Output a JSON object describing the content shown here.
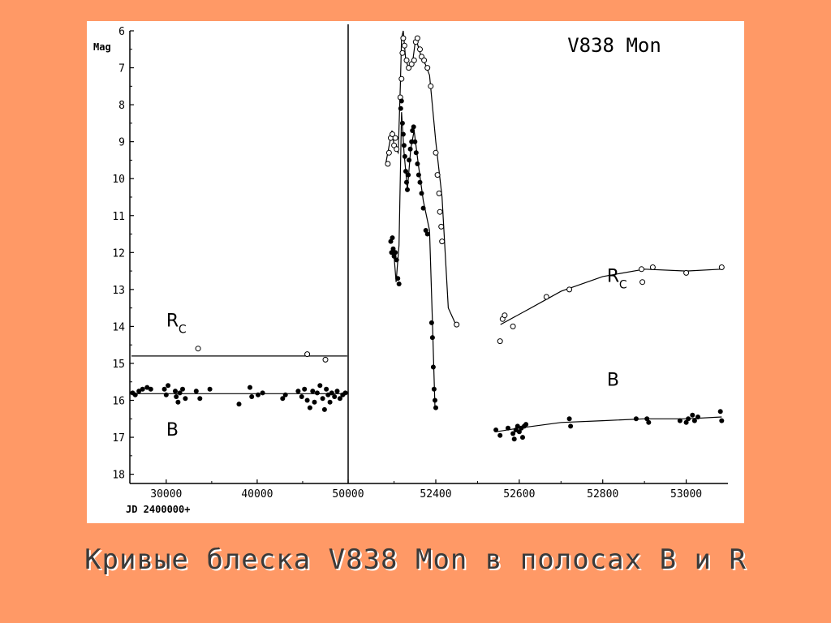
{
  "caption": "Кривые блеска V838 Mon в полосах B и R",
  "chart_data": [
    {
      "type": "scatter",
      "panel": "left",
      "title": "",
      "ylabel": "Mag",
      "xlabel": "JD 2400000+",
      "ylim": [
        6,
        18.25
      ],
      "xlim": [
        26000,
        50000
      ],
      "y_inverted": true,
      "yticks": [
        6,
        7,
        8,
        9,
        10,
        11,
        12,
        13,
        14,
        15,
        16,
        17,
        18
      ],
      "xticks": [
        30000,
        40000,
        50000
      ],
      "grid": false,
      "annotations": [
        {
          "text": "R",
          "sub": "C",
          "x": 30000,
          "y": 14.0
        },
        {
          "text": "B",
          "x": 30000,
          "y": 16.95
        }
      ],
      "series": [
        {
          "band": "Rc",
          "marker": "open-circle",
          "trend_y": 14.8,
          "points": [
            [
              33500,
              14.6
            ],
            [
              45500,
              14.75
            ],
            [
              47500,
              14.9
            ]
          ]
        },
        {
          "band": "B",
          "marker": "filled-circle",
          "trend_y": 15.82,
          "points": [
            [
              26300,
              15.8
            ],
            [
              26600,
              15.85
            ],
            [
              27000,
              15.75
            ],
            [
              27400,
              15.7
            ],
            [
              27900,
              15.65
            ],
            [
              28300,
              15.7
            ],
            [
              29800,
              15.7
            ],
            [
              30000,
              15.85
            ],
            [
              30200,
              15.6
            ],
            [
              31000,
              15.75
            ],
            [
              31100,
              15.9
            ],
            [
              31300,
              16.05
            ],
            [
              31500,
              15.8
            ],
            [
              31800,
              15.7
            ],
            [
              32100,
              15.95
            ],
            [
              33300,
              15.75
            ],
            [
              33700,
              15.95
            ],
            [
              34800,
              15.7
            ],
            [
              38000,
              16.1
            ],
            [
              39200,
              15.65
            ],
            [
              39400,
              15.9
            ],
            [
              40100,
              15.85
            ],
            [
              40600,
              15.8
            ],
            [
              42800,
              15.95
            ],
            [
              43100,
              15.85
            ],
            [
              44500,
              15.75
            ],
            [
              44900,
              15.9
            ],
            [
              45200,
              15.7
            ],
            [
              45500,
              16.0
            ],
            [
              45800,
              16.2
            ],
            [
              46100,
              15.75
            ],
            [
              46300,
              16.05
            ],
            [
              46600,
              15.8
            ],
            [
              46900,
              15.6
            ],
            [
              47200,
              15.95
            ],
            [
              47400,
              16.25
            ],
            [
              47600,
              15.7
            ],
            [
              47800,
              15.85
            ],
            [
              48000,
              16.05
            ],
            [
              48200,
              15.8
            ],
            [
              48500,
              15.9
            ],
            [
              48800,
              15.75
            ],
            [
              49100,
              15.95
            ],
            [
              49400,
              15.85
            ],
            [
              49700,
              15.8
            ]
          ]
        }
      ]
    },
    {
      "type": "line",
      "panel": "right",
      "title": "V838 Mon",
      "ylim": [
        6,
        18.25
      ],
      "xlim": [
        52190,
        53100
      ],
      "y_inverted": true,
      "xticks": [
        52400,
        52600,
        52800,
        53000
      ],
      "grid": false,
      "annotations": [
        {
          "text": "R",
          "sub": "C",
          "x": 52810,
          "y": 12.8
        },
        {
          "text": "B",
          "x": 52810,
          "y": 15.6
        }
      ],
      "series": [
        {
          "band": "Rc",
          "marker": "open-circle",
          "curve": [
            [
              52280,
              9.6
            ],
            [
              52295,
              8.7
            ],
            [
              52300,
              9.1
            ],
            [
              52310,
              9.3
            ],
            [
              52315,
              7.5
            ],
            [
              52318,
              6.2
            ],
            [
              52322,
              6.0
            ],
            [
              52328,
              6.8
            ],
            [
              52335,
              7.0
            ],
            [
              52345,
              6.8
            ],
            [
              52352,
              6.2
            ],
            [
              52360,
              6.5
            ],
            [
              52368,
              6.8
            ],
            [
              52375,
              6.9
            ],
            [
              52385,
              7.2
            ],
            [
              52400,
              9.0
            ],
            [
              52415,
              10.5
            ],
            [
              52430,
              13.5
            ],
            [
              52450,
              14.0
            ]
          ],
          "points": [
            [
              52285,
              9.6
            ],
            [
              52288,
              9.3
            ],
            [
              52292,
              8.9
            ],
            [
              52296,
              8.8
            ],
            [
              52300,
              9.1
            ],
            [
              52303,
              8.9
            ],
            [
              52306,
              9.2
            ],
            [
              52315,
              7.8
            ],
            [
              52318,
              7.3
            ],
            [
              52320,
              6.6
            ],
            [
              52322,
              6.2
            ],
            [
              52325,
              6.4
            ],
            [
              52330,
              6.8
            ],
            [
              52335,
              7.0
            ],
            [
              52342,
              6.9
            ],
            [
              52348,
              6.8
            ],
            [
              52352,
              6.3
            ],
            [
              52356,
              6.2
            ],
            [
              52362,
              6.5
            ],
            [
              52366,
              6.7
            ],
            [
              52372,
              6.8
            ],
            [
              52380,
              7.0
            ],
            [
              52388,
              7.5
            ],
            [
              52400,
              9.3
            ],
            [
              52404,
              9.9
            ],
            [
              52408,
              10.4
            ],
            [
              52410,
              10.9
            ],
            [
              52413,
              11.3
            ],
            [
              52415,
              11.7
            ],
            [
              52450,
              13.95
            ],
            [
              52554,
              14.4
            ],
            [
              52560,
              13.8
            ],
            [
              52565,
              13.7
            ],
            [
              52585,
              14.0
            ],
            [
              52665,
              13.2
            ],
            [
              52720,
              13.0
            ],
            [
              52893,
              12.45
            ],
            [
              52895,
              12.8
            ],
            [
              52920,
              12.4
            ],
            [
              53000,
              12.55
            ],
            [
              53085,
              12.4
            ]
          ],
          "trend": [
            [
              52555,
              13.95
            ],
            [
              52620,
              13.55
            ],
            [
              52700,
              13.05
            ],
            [
              52800,
              12.65
            ],
            [
              52900,
              12.45
            ],
            [
              53000,
              12.5
            ],
            [
              53085,
              12.45
            ]
          ]
        },
        {
          "band": "B",
          "marker": "filled-circle",
          "curve": [
            [
              52300,
              12.1
            ],
            [
              52305,
              12.8
            ],
            [
              52312,
              11.8
            ],
            [
              52318,
              8.2
            ],
            [
              52324,
              9.3
            ],
            [
              52332,
              10.3
            ],
            [
              52340,
              9.2
            ],
            [
              52348,
              8.7
            ],
            [
              52358,
              9.6
            ],
            [
              52370,
              10.6
            ],
            [
              52385,
              11.4
            ],
            [
              52392,
              13.9
            ],
            [
              52398,
              16.2
            ]
          ],
          "points": [
            [
              52292,
              11.7
            ],
            [
              52294,
              12.0
            ],
            [
              52296,
              11.6
            ],
            [
              52298,
              11.9
            ],
            [
              52300,
              12.1
            ],
            [
              52303,
              12.0
            ],
            [
              52306,
              12.2
            ],
            [
              52309,
              12.7
            ],
            [
              52312,
              12.85
            ],
            [
              52316,
              8.1
            ],
            [
              52318,
              7.9
            ],
            [
              52320,
              8.5
            ],
            [
              52322,
              8.8
            ],
            [
              52324,
              9.1
            ],
            [
              52326,
              9.4
            ],
            [
              52328,
              9.8
            ],
            [
              52330,
              10.1
            ],
            [
              52332,
              10.3
            ],
            [
              52334,
              9.9
            ],
            [
              52336,
              9.5
            ],
            [
              52339,
              9.2
            ],
            [
              52342,
              9.0
            ],
            [
              52344,
              8.7
            ],
            [
              52347,
              8.6
            ],
            [
              52350,
              9.0
            ],
            [
              52353,
              9.3
            ],
            [
              52356,
              9.6
            ],
            [
              52359,
              9.9
            ],
            [
              52362,
              10.1
            ],
            [
              52366,
              10.4
            ],
            [
              52370,
              10.8
            ],
            [
              52376,
              11.4
            ],
            [
              52380,
              11.5
            ],
            [
              52390,
              13.9
            ],
            [
              52392,
              14.3
            ],
            [
              52394,
              15.1
            ],
            [
              52396,
              15.7
            ],
            [
              52398,
              16.0
            ],
            [
              52400,
              16.2
            ],
            [
              52544,
              16.8
            ],
            [
              52554,
              16.95
            ],
            [
              52573,
              16.75
            ],
            [
              52585,
              16.9
            ],
            [
              52588,
              17.05
            ],
            [
              52592,
              16.8
            ],
            [
              52596,
              16.7
            ],
            [
              52600,
              16.85
            ],
            [
              52605,
              16.75
            ],
            [
              52608,
              17.0
            ],
            [
              52612,
              16.7
            ],
            [
              52616,
              16.65
            ],
            [
              52720,
              16.5
            ],
            [
              52723,
              16.7
            ],
            [
              52880,
              16.5
            ],
            [
              52906,
              16.5
            ],
            [
              52910,
              16.6
            ],
            [
              52985,
              16.55
            ],
            [
              53000,
              16.6
            ],
            [
              53005,
              16.5
            ],
            [
              53015,
              16.4
            ],
            [
              53020,
              16.55
            ],
            [
              53028,
              16.45
            ],
            [
              53082,
              16.3
            ],
            [
              53085,
              16.55
            ]
          ],
          "trend": [
            [
              52545,
              16.85
            ],
            [
              52600,
              16.75
            ],
            [
              52700,
              16.6
            ],
            [
              52800,
              16.55
            ],
            [
              52900,
              16.5
            ],
            [
              53000,
              16.5
            ],
            [
              53085,
              16.45
            ]
          ]
        }
      ]
    }
  ],
  "colors": {
    "slide_background": "#ff9966",
    "panel_background": "#ffffff",
    "ink": "#000000",
    "caption_text": "#3a3a3a"
  }
}
